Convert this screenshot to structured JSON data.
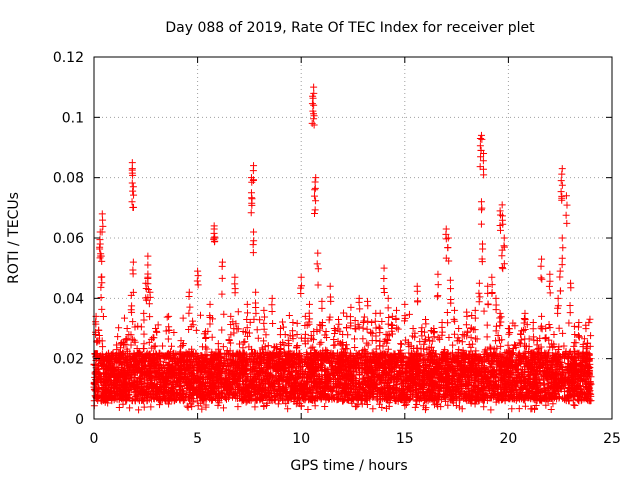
{
  "chart_data": {
    "type": "scatter",
    "title": "Day 088 of 2019, Rate Of TEC Index for receiver plet",
    "xlabel": "GPS time / hours",
    "ylabel": "ROTI / TECUs",
    "xlim": [
      0,
      25
    ],
    "ylim": [
      0,
      0.12
    ],
    "xticks": [
      0,
      5,
      10,
      15,
      20,
      25
    ],
    "xtick_labels": [
      "0",
      "5",
      "10",
      "15",
      "20",
      "25"
    ],
    "yticks": [
      0,
      0.02,
      0.04,
      0.06,
      0.08,
      0.1,
      0.12
    ],
    "ytick_labels": [
      "0",
      "0.02",
      "0.04",
      "0.06",
      "0.08",
      "0.1",
      "0.12"
    ],
    "grid": true,
    "marker": "+",
    "color": "#ff0000",
    "series": [
      {
        "name": "ROTI",
        "x": [
          0.05,
          0.1,
          0.2,
          0.3,
          0.35,
          0.4,
          0.45,
          0.5,
          0.55,
          0.6,
          0.7,
          0.8,
          0.9,
          1.0,
          1.1,
          1.2,
          1.3,
          1.4,
          1.5,
          1.6,
          1.7,
          1.8,
          1.85,
          1.9,
          2.0,
          2.1,
          2.2,
          2.3,
          2.4,
          2.5,
          2.6,
          2.7,
          2.8,
          2.9,
          3.0,
          3.2,
          3.4,
          3.6,
          3.8,
          4.0,
          4.2,
          4.4,
          4.6,
          4.8,
          5.0,
          5.2,
          5.4,
          5.6,
          5.8,
          6.0,
          6.2,
          6.4,
          6.6,
          6.8,
          7.0,
          7.2,
          7.4,
          7.6,
          7.7,
          7.8,
          8.0,
          8.2,
          8.4,
          8.6,
          8.8,
          9.0,
          9.2,
          9.4,
          9.6,
          9.8,
          10.0,
          10.2,
          10.4,
          10.6,
          10.7,
          10.8,
          11.0,
          11.2,
          11.4,
          11.6,
          11.8,
          12.0,
          12.2,
          12.4,
          12.6,
          12.8,
          13.0,
          13.2,
          13.4,
          13.6,
          13.8,
          14.0,
          14.2,
          14.4,
          14.6,
          14.8,
          15.0,
          15.2,
          15.4,
          15.6,
          15.8,
          16.0,
          16.2,
          16.4,
          16.6,
          16.8,
          17.0,
          17.2,
          17.4,
          17.6,
          17.8,
          18.0,
          18.2,
          18.4,
          18.6,
          18.7,
          18.8,
          19.0,
          19.2,
          19.4,
          19.6,
          19.7,
          19.8,
          20.0,
          20.2,
          20.4,
          20.6,
          20.8,
          21.0,
          21.2,
          21.4,
          21.6,
          21.8,
          22.0,
          22.2,
          22.4,
          22.5,
          22.6,
          22.8,
          23.0,
          23.2,
          23.4,
          23.6,
          23.8,
          23.9,
          0.3,
          0.35,
          1.85,
          1.9,
          2.6,
          2.7,
          5.8,
          7.6,
          7.7,
          10.55,
          10.6,
          10.65,
          18.65,
          18.7,
          18.75,
          19.6,
          19.7,
          22.55,
          22.6,
          17.1,
          21.6
        ],
        "y": [
          0.015,
          0.034,
          0.012,
          0.058,
          0.047,
          0.068,
          0.02,
          0.014,
          0.013,
          0.016,
          0.018,
          0.015,
          0.021,
          0.016,
          0.023,
          0.017,
          0.025,
          0.019,
          0.014,
          0.03,
          0.016,
          0.041,
          0.085,
          0.052,
          0.018,
          0.016,
          0.022,
          0.017,
          0.035,
          0.045,
          0.054,
          0.02,
          0.016,
          0.024,
          0.018,
          0.014,
          0.016,
          0.034,
          0.019,
          0.015,
          0.026,
          0.018,
          0.042,
          0.016,
          0.049,
          0.021,
          0.027,
          0.038,
          0.063,
          0.025,
          0.052,
          0.016,
          0.034,
          0.047,
          0.021,
          0.029,
          0.038,
          0.075,
          0.084,
          0.042,
          0.019,
          0.036,
          0.022,
          0.04,
          0.024,
          0.03,
          0.022,
          0.025,
          0.032,
          0.028,
          0.047,
          0.034,
          0.038,
          0.11,
          0.08,
          0.055,
          0.039,
          0.029,
          0.044,
          0.03,
          0.033,
          0.028,
          0.034,
          0.037,
          0.03,
          0.04,
          0.032,
          0.039,
          0.032,
          0.035,
          0.03,
          0.05,
          0.04,
          0.034,
          0.036,
          0.025,
          0.038,
          0.024,
          0.03,
          0.044,
          0.029,
          0.033,
          0.026,
          0.03,
          0.048,
          0.032,
          0.063,
          0.046,
          0.036,
          0.03,
          0.028,
          0.034,
          0.03,
          0.036,
          0.045,
          0.094,
          0.088,
          0.044,
          0.047,
          0.04,
          0.035,
          0.071,
          0.06,
          0.03,
          0.022,
          0.018,
          0.028,
          0.035,
          0.024,
          0.032,
          0.026,
          0.034,
          0.03,
          0.048,
          0.028,
          0.04,
          0.049,
          0.083,
          0.074,
          0.045,
          0.028,
          0.032,
          0.024,
          0.022,
          0.02,
          0.062,
          0.054,
          0.083,
          0.077,
          0.047,
          0.042,
          0.064,
          0.08,
          0.062,
          0.107,
          0.104,
          0.076,
          0.093,
          0.072,
          0.058,
          0.069,
          0.056,
          0.079,
          0.06,
          0.06,
          0.053
        ]
      }
    ],
    "band": {
      "note": "dense background scatter of ROTI values across the full day",
      "x_range": [
        0,
        24
      ],
      "y_low": 0.006,
      "y_high": 0.022,
      "samples": 6000
    }
  }
}
